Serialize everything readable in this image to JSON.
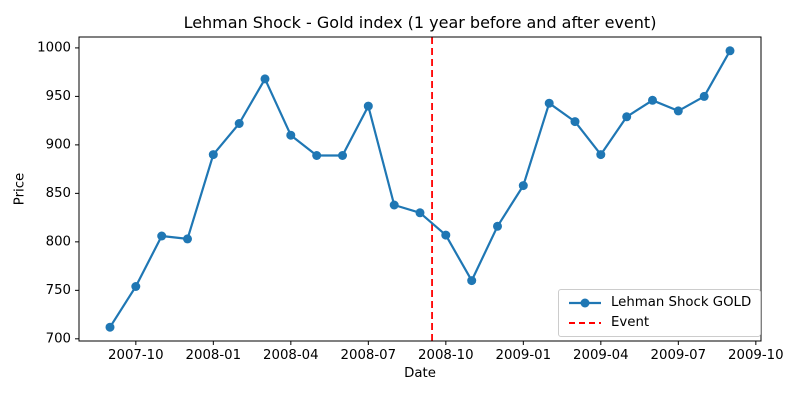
{
  "chart_data": {
    "type": "line",
    "title": "Lehman Shock - Gold index (1 year before and after event)",
    "xlabel": "Date",
    "ylabel": "Price",
    "grid": false,
    "legend_position": "lower right",
    "x_ticks": [
      "2007-10",
      "2008-01",
      "2008-04",
      "2008-07",
      "2008-10",
      "2009-01",
      "2009-04",
      "2009-07",
      "2009-10"
    ],
    "y_ticks": [
      700,
      750,
      800,
      850,
      900,
      950,
      1000
    ],
    "ylim_approx": [
      698,
      1011
    ],
    "series": [
      {
        "name": "Lehman Shock GOLD",
        "color": "#1f77b4",
        "marker": "circle",
        "x": [
          "2007-09",
          "2007-10",
          "2007-11",
          "2007-12",
          "2008-01",
          "2008-02",
          "2008-03",
          "2008-04",
          "2008-05",
          "2008-06",
          "2008-07",
          "2008-08",
          "2008-09",
          "2008-10",
          "2008-11",
          "2008-12",
          "2009-01",
          "2009-02",
          "2009-03",
          "2009-04",
          "2009-05",
          "2009-06",
          "2009-07",
          "2009-08",
          "2009-09"
        ],
        "values": [
          712,
          754,
          806,
          803,
          890,
          922,
          968,
          910,
          889,
          889,
          940,
          838,
          830,
          807,
          760,
          816,
          858,
          943,
          924,
          890,
          929,
          946,
          935,
          950,
          997
        ]
      }
    ],
    "event_line": {
      "label": "Event",
      "date": "2008-09-15",
      "color": "#ff0000",
      "style": "dashed"
    },
    "axis_color": "#000000"
  }
}
